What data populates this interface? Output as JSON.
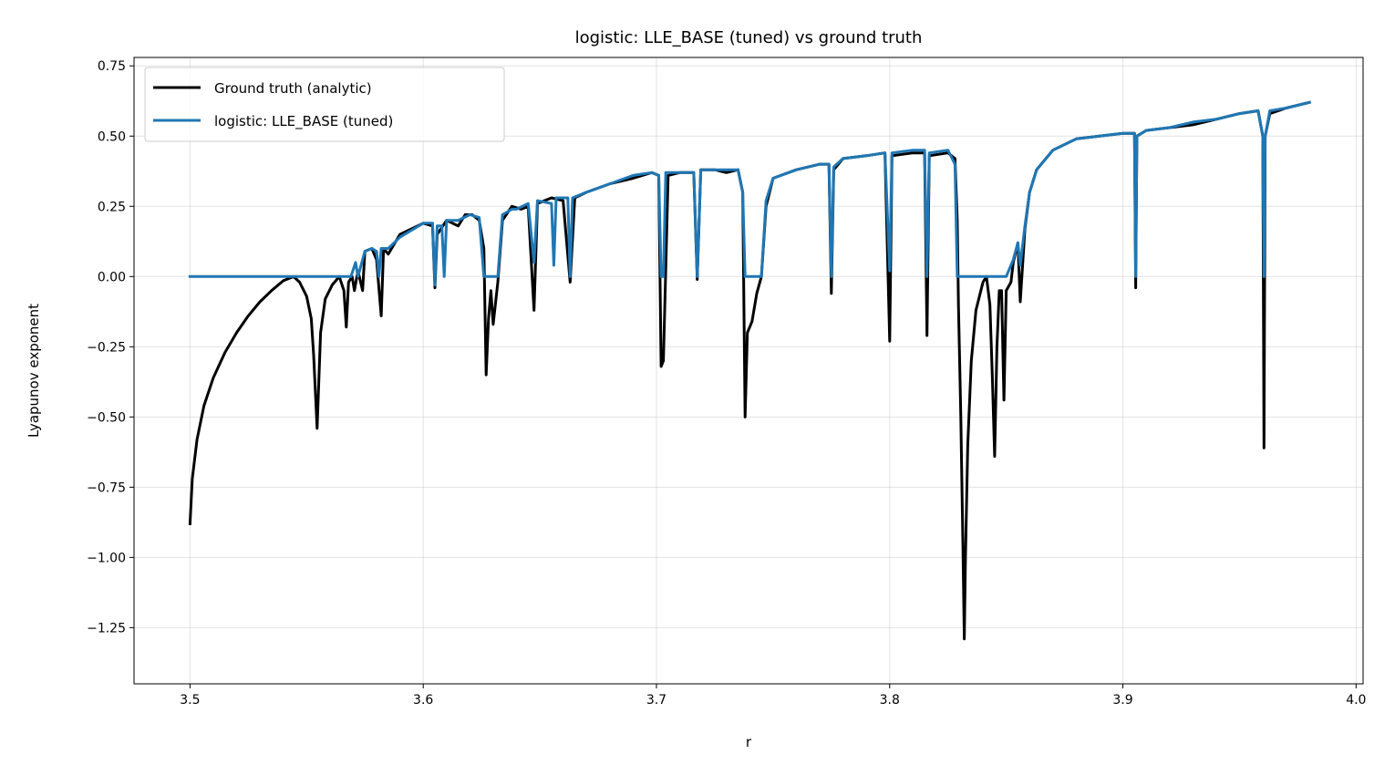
{
  "chart_data": {
    "type": "line",
    "title": "logistic: LLE_BASE (tuned) vs ground truth",
    "xlabel": "r",
    "ylabel": "Lyapunov exponent",
    "xlim": [
      3.476,
      4.003
    ],
    "ylim": [
      -1.45,
      0.78
    ],
    "xticks": [
      3.5,
      3.6,
      3.7,
      3.8,
      3.9,
      4.0
    ],
    "xtick_labels": [
      "3.5",
      "3.6",
      "3.7",
      "3.8",
      "3.9",
      "4.0"
    ],
    "yticks": [
      0.75,
      0.5,
      0.25,
      0.0,
      -0.25,
      -0.5,
      -0.75,
      -1.0,
      -1.25
    ],
    "ytick_labels": [
      "0.75",
      "0.50",
      "0.25",
      "0.00",
      "−0.25",
      "−0.50",
      "−0.75",
      "−1.00",
      "−1.25"
    ],
    "grid": true,
    "legend_position": "top-left",
    "series": [
      {
        "name": "Ground truth (analytic)",
        "color": "#000000",
        "points": [
          [
            3.5,
            -0.88
          ],
          [
            3.501,
            -0.72
          ],
          [
            3.503,
            -0.58
          ],
          [
            3.506,
            -0.46
          ],
          [
            3.51,
            -0.36
          ],
          [
            3.515,
            -0.27
          ],
          [
            3.52,
            -0.2
          ],
          [
            3.525,
            -0.14
          ],
          [
            3.53,
            -0.09
          ],
          [
            3.535,
            -0.05
          ],
          [
            3.54,
            -0.015
          ],
          [
            3.5444,
            0.0
          ],
          [
            3.547,
            -0.02
          ],
          [
            3.55,
            -0.07
          ],
          [
            3.552,
            -0.15
          ],
          [
            3.553,
            -0.28
          ],
          [
            3.5545,
            -0.54
          ],
          [
            3.556,
            -0.2
          ],
          [
            3.558,
            -0.08
          ],
          [
            3.561,
            -0.03
          ],
          [
            3.564,
            0.0
          ],
          [
            3.566,
            -0.05
          ],
          [
            3.567,
            -0.18
          ],
          [
            3.568,
            -0.02
          ],
          [
            3.5695,
            0.0
          ],
          [
            3.5705,
            -0.05
          ],
          [
            3.572,
            0.02
          ],
          [
            3.574,
            -0.05
          ],
          [
            3.575,
            0.09
          ],
          [
            3.578,
            0.1
          ],
          [
            3.58,
            0.06
          ],
          [
            3.582,
            -0.14
          ],
          [
            3.583,
            0.1
          ],
          [
            3.585,
            0.08
          ],
          [
            3.59,
            0.15
          ],
          [
            3.6,
            0.19
          ],
          [
            3.604,
            0.18
          ],
          [
            3.605,
            -0.04
          ],
          [
            3.606,
            0.15
          ],
          [
            3.61,
            0.2
          ],
          [
            3.615,
            0.18
          ],
          [
            3.618,
            0.22
          ],
          [
            3.621,
            0.22
          ],
          [
            3.624,
            0.2
          ],
          [
            3.626,
            0.1
          ],
          [
            3.627,
            -0.35
          ],
          [
            3.628,
            -0.15
          ],
          [
            3.629,
            -0.05
          ],
          [
            3.63,
            -0.17
          ],
          [
            3.632,
            -0.02
          ],
          [
            3.634,
            0.2
          ],
          [
            3.638,
            0.25
          ],
          [
            3.642,
            0.24
          ],
          [
            3.645,
            0.25
          ],
          [
            3.6475,
            -0.12
          ],
          [
            3.649,
            0.26
          ],
          [
            3.655,
            0.28
          ],
          [
            3.66,
            0.27
          ],
          [
            3.663,
            -0.02
          ],
          [
            3.665,
            0.28
          ],
          [
            3.67,
            0.3
          ],
          [
            3.68,
            0.33
          ],
          [
            3.69,
            0.35
          ],
          [
            3.698,
            0.37
          ],
          [
            3.701,
            0.36
          ],
          [
            3.702,
            -0.32
          ],
          [
            3.703,
            -0.3
          ],
          [
            3.705,
            0.36
          ],
          [
            3.71,
            0.37
          ],
          [
            3.716,
            0.37
          ],
          [
            3.7175,
            -0.01
          ],
          [
            3.719,
            0.38
          ],
          [
            3.725,
            0.38
          ],
          [
            3.73,
            0.37
          ],
          [
            3.735,
            0.38
          ],
          [
            3.737,
            0.3
          ],
          [
            3.738,
            -0.5
          ],
          [
            3.739,
            -0.2
          ],
          [
            3.741,
            -0.16
          ],
          [
            3.743,
            -0.06
          ],
          [
            3.745,
            0.0
          ],
          [
            3.747,
            0.25
          ],
          [
            3.75,
            0.35
          ],
          [
            3.76,
            0.38
          ],
          [
            3.77,
            0.4
          ],
          [
            3.774,
            0.4
          ],
          [
            3.775,
            -0.06
          ],
          [
            3.776,
            0.38
          ],
          [
            3.78,
            0.42
          ],
          [
            3.79,
            0.43
          ],
          [
            3.798,
            0.44
          ],
          [
            3.8,
            -0.23
          ],
          [
            3.801,
            0.43
          ],
          [
            3.81,
            0.44
          ],
          [
            3.815,
            0.44
          ],
          [
            3.816,
            -0.21
          ],
          [
            3.817,
            0.43
          ],
          [
            3.825,
            0.44
          ],
          [
            3.828,
            0.42
          ],
          [
            3.829,
            0.2
          ],
          [
            3.8295,
            -0.1
          ],
          [
            3.8305,
            -0.5
          ],
          [
            3.8315,
            -1.0
          ],
          [
            3.832,
            -1.29
          ],
          [
            3.8325,
            -1.0
          ],
          [
            3.8335,
            -0.6
          ],
          [
            3.835,
            -0.3
          ],
          [
            3.837,
            -0.12
          ],
          [
            3.84,
            -0.02
          ],
          [
            3.8415,
            0.0
          ],
          [
            3.843,
            -0.1
          ],
          [
            3.844,
            -0.35
          ],
          [
            3.845,
            -0.64
          ],
          [
            3.846,
            -0.25
          ],
          [
            3.847,
            -0.05
          ],
          [
            3.848,
            -0.05
          ],
          [
            3.849,
            -0.44
          ],
          [
            3.85,
            -0.05
          ],
          [
            3.852,
            -0.02
          ],
          [
            3.853,
            0.05
          ],
          [
            3.855,
            0.12
          ],
          [
            3.856,
            -0.09
          ],
          [
            3.858,
            0.17
          ],
          [
            3.86,
            0.3
          ],
          [
            3.863,
            0.38
          ],
          [
            3.87,
            0.45
          ],
          [
            3.88,
            0.49
          ],
          [
            3.89,
            0.5
          ],
          [
            3.9,
            0.51
          ],
          [
            3.905,
            0.51
          ],
          [
            3.9055,
            -0.04
          ],
          [
            3.906,
            0.5
          ],
          [
            3.91,
            0.52
          ],
          [
            3.92,
            0.53
          ],
          [
            3.93,
            0.54
          ],
          [
            3.94,
            0.56
          ],
          [
            3.95,
            0.58
          ],
          [
            3.958,
            0.59
          ],
          [
            3.96,
            0.5
          ],
          [
            3.9605,
            -0.61
          ],
          [
            3.961,
            0.5
          ],
          [
            3.963,
            0.58
          ],
          [
            3.97,
            0.6
          ],
          [
            3.98,
            0.62
          ]
        ]
      },
      {
        "name": "logistic: LLE_BASE (tuned)",
        "color": "#1f77b4",
        "points": [
          [
            3.5,
            0.0
          ],
          [
            3.567,
            0.0
          ],
          [
            3.569,
            0.0
          ],
          [
            3.571,
            0.05
          ],
          [
            3.572,
            0.0
          ],
          [
            3.575,
            0.09
          ],
          [
            3.578,
            0.1
          ],
          [
            3.58,
            0.09
          ],
          [
            3.581,
            0.0
          ],
          [
            3.582,
            0.1
          ],
          [
            3.585,
            0.1
          ],
          [
            3.59,
            0.14
          ],
          [
            3.6,
            0.19
          ],
          [
            3.604,
            0.19
          ],
          [
            3.605,
            -0.03
          ],
          [
            3.606,
            0.18
          ],
          [
            3.608,
            0.18
          ],
          [
            3.609,
            0.0
          ],
          [
            3.61,
            0.2
          ],
          [
            3.615,
            0.2
          ],
          [
            3.62,
            0.22
          ],
          [
            3.624,
            0.21
          ],
          [
            3.626,
            0.0
          ],
          [
            3.632,
            0.0
          ],
          [
            3.634,
            0.22
          ],
          [
            3.638,
            0.24
          ],
          [
            3.64,
            0.24
          ],
          [
            3.645,
            0.26
          ],
          [
            3.6475,
            0.05
          ],
          [
            3.649,
            0.27
          ],
          [
            3.655,
            0.26
          ],
          [
            3.656,
            0.04
          ],
          [
            3.657,
            0.28
          ],
          [
            3.662,
            0.28
          ],
          [
            3.663,
            0.0
          ],
          [
            3.664,
            0.28
          ],
          [
            3.67,
            0.3
          ],
          [
            3.68,
            0.33
          ],
          [
            3.69,
            0.36
          ],
          [
            3.698,
            0.37
          ],
          [
            3.701,
            0.36
          ],
          [
            3.702,
            0.0
          ],
          [
            3.703,
            0.0
          ],
          [
            3.704,
            0.37
          ],
          [
            3.71,
            0.37
          ],
          [
            3.716,
            0.37
          ],
          [
            3.7175,
            0.0
          ],
          [
            3.719,
            0.38
          ],
          [
            3.725,
            0.38
          ],
          [
            3.73,
            0.38
          ],
          [
            3.735,
            0.38
          ],
          [
            3.737,
            0.3
          ],
          [
            3.738,
            0.0
          ],
          [
            3.745,
            0.0
          ],
          [
            3.747,
            0.27
          ],
          [
            3.75,
            0.35
          ],
          [
            3.76,
            0.38
          ],
          [
            3.77,
            0.4
          ],
          [
            3.774,
            0.4
          ],
          [
            3.775,
            0.0
          ],
          [
            3.776,
            0.39
          ],
          [
            3.78,
            0.42
          ],
          [
            3.79,
            0.43
          ],
          [
            3.798,
            0.44
          ],
          [
            3.8,
            0.02
          ],
          [
            3.801,
            0.44
          ],
          [
            3.81,
            0.45
          ],
          [
            3.815,
            0.45
          ],
          [
            3.816,
            0.0
          ],
          [
            3.817,
            0.44
          ],
          [
            3.825,
            0.45
          ],
          [
            3.828,
            0.4
          ],
          [
            3.829,
            0.0
          ],
          [
            3.85,
            0.0
          ],
          [
            3.853,
            0.06
          ],
          [
            3.855,
            0.12
          ],
          [
            3.856,
            0.04
          ],
          [
            3.858,
            0.18
          ],
          [
            3.86,
            0.3
          ],
          [
            3.863,
            0.38
          ],
          [
            3.87,
            0.45
          ],
          [
            3.88,
            0.49
          ],
          [
            3.89,
            0.5
          ],
          [
            3.9,
            0.51
          ],
          [
            3.905,
            0.51
          ],
          [
            3.9055,
            0.0
          ],
          [
            3.906,
            0.5
          ],
          [
            3.91,
            0.52
          ],
          [
            3.92,
            0.53
          ],
          [
            3.93,
            0.55
          ],
          [
            3.94,
            0.56
          ],
          [
            3.95,
            0.58
          ],
          [
            3.958,
            0.59
          ],
          [
            3.96,
            0.5
          ],
          [
            3.9605,
            0.0
          ],
          [
            3.961,
            0.5
          ],
          [
            3.963,
            0.59
          ],
          [
            3.97,
            0.6
          ],
          [
            3.98,
            0.62
          ]
        ]
      }
    ]
  }
}
